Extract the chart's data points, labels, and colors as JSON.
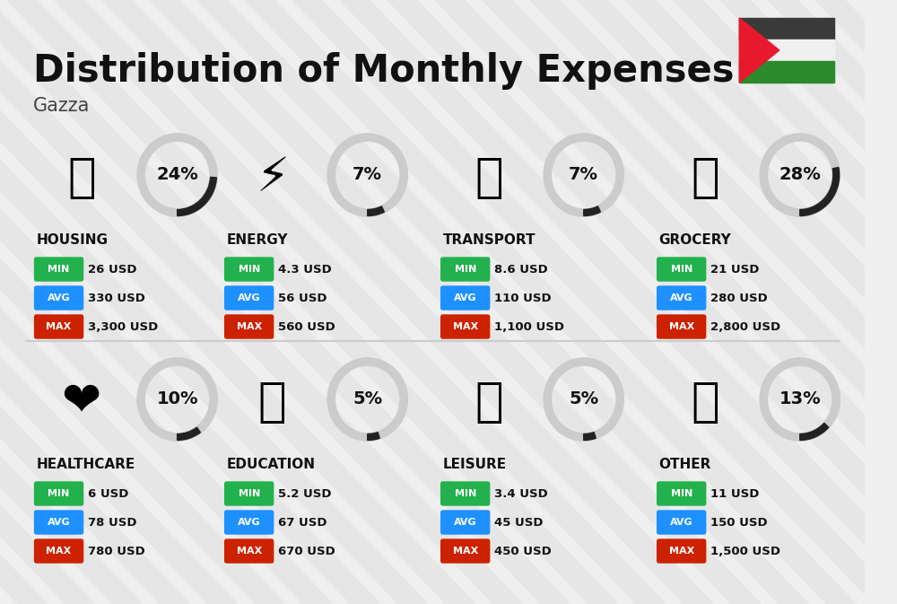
{
  "title": "Distribution of Monthly Expenses",
  "subtitle": "Gazza",
  "background_color": "#efefef",
  "categories": [
    {
      "name": "HOUSING",
      "percent": 24,
      "min_val": "26 USD",
      "avg_val": "330 USD",
      "max_val": "3,300 USD",
      "icon": "🏢",
      "row": 0,
      "col": 0
    },
    {
      "name": "ENERGY",
      "percent": 7,
      "min_val": "4.3 USD",
      "avg_val": "56 USD",
      "max_val": "560 USD",
      "icon": "⚡",
      "row": 0,
      "col": 1
    },
    {
      "name": "TRANSPORT",
      "percent": 7,
      "min_val": "8.6 USD",
      "avg_val": "110 USD",
      "max_val": "1,100 USD",
      "icon": "🚌",
      "row": 0,
      "col": 2
    },
    {
      "name": "GROCERY",
      "percent": 28,
      "min_val": "21 USD",
      "avg_val": "280 USD",
      "max_val": "2,800 USD",
      "icon": "🛒",
      "row": 0,
      "col": 3
    },
    {
      "name": "HEALTHCARE",
      "percent": 10,
      "min_val": "6 USD",
      "avg_val": "78 USD",
      "max_val": "780 USD",
      "icon": "❤️",
      "row": 1,
      "col": 0
    },
    {
      "name": "EDUCATION",
      "percent": 5,
      "min_val": "5.2 USD",
      "avg_val": "67 USD",
      "max_val": "670 USD",
      "icon": "🎓",
      "row": 1,
      "col": 1
    },
    {
      "name": "LEISURE",
      "percent": 5,
      "min_val": "3.4 USD",
      "avg_val": "45 USD",
      "max_val": "450 USD",
      "icon": "🛍",
      "row": 1,
      "col": 2
    },
    {
      "name": "OTHER",
      "percent": 13,
      "min_val": "11 USD",
      "avg_val": "150 USD",
      "max_val": "1,500 USD",
      "icon": "💰",
      "row": 1,
      "col": 3
    }
  ],
  "min_color": "#22b14c",
  "avg_color": "#1e90ff",
  "max_color": "#cc2200",
  "value_color": "#111111",
  "arc_filled_color": "#222222",
  "arc_bg_color": "#cccccc",
  "percent_color": "#111111",
  "cat_name_color": "#111111",
  "title_color": "#111111",
  "subtitle_color": "#444444",
  "flag_colors": {
    "black": "#3a3a3a",
    "green": "#2b8a2b",
    "red": "#e8192c"
  },
  "stripe_color": "#dcdcdc",
  "divider_color": "#cccccc"
}
